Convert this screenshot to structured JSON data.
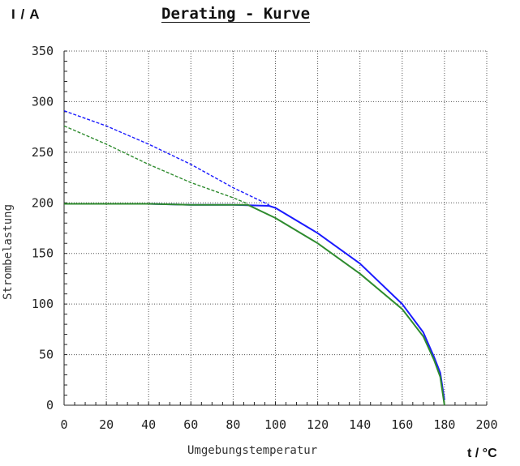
{
  "chart_data": {
    "type": "line",
    "title": "Derating - Kurve",
    "y_unit": "I / A",
    "x_unit": "t / °C",
    "xlabel": "Umgebungstemperatur",
    "ylabel": "Strombelastung",
    "xlim": [
      0,
      200
    ],
    "ylim": [
      0,
      350
    ],
    "x_ticks": [
      "0",
      "20",
      "40",
      "60",
      "80",
      "100",
      "120",
      "140",
      "160",
      "180",
      "200"
    ],
    "y_ticks": [
      "0",
      "50",
      "100",
      "150",
      "200",
      "250",
      "300",
      "350"
    ],
    "grid": true,
    "colors": {
      "blue": "#1a1aff",
      "green": "#2e8b2e"
    },
    "series": [
      {
        "color": "#1a1aff",
        "style": "dashed",
        "x": [
          0,
          20,
          40,
          60,
          80,
          97
        ],
        "y": [
          291,
          276,
          258,
          238,
          215,
          198
        ]
      },
      {
        "color": "#2e8b2e",
        "style": "dashed",
        "x": [
          0,
          20,
          40,
          60,
          80,
          87
        ],
        "y": [
          276,
          258,
          238,
          220,
          205,
          199
        ]
      },
      {
        "color": "#1a1aff",
        "style": "solid",
        "x": [
          0,
          20,
          40,
          60,
          80,
          97,
          100,
          120,
          140,
          160,
          170,
          175,
          178,
          180
        ],
        "y": [
          199,
          199,
          199,
          198,
          198,
          197,
          195,
          170,
          140,
          100,
          72,
          48,
          32,
          5
        ]
      },
      {
        "color": "#2e8b2e",
        "style": "solid",
        "x": [
          0,
          20,
          40,
          60,
          80,
          87,
          100,
          120,
          140,
          160,
          170,
          175,
          178,
          180
        ],
        "y": [
          199,
          199,
          199,
          198,
          198,
          198,
          185,
          160,
          130,
          95,
          68,
          45,
          28,
          0
        ]
      }
    ]
  }
}
